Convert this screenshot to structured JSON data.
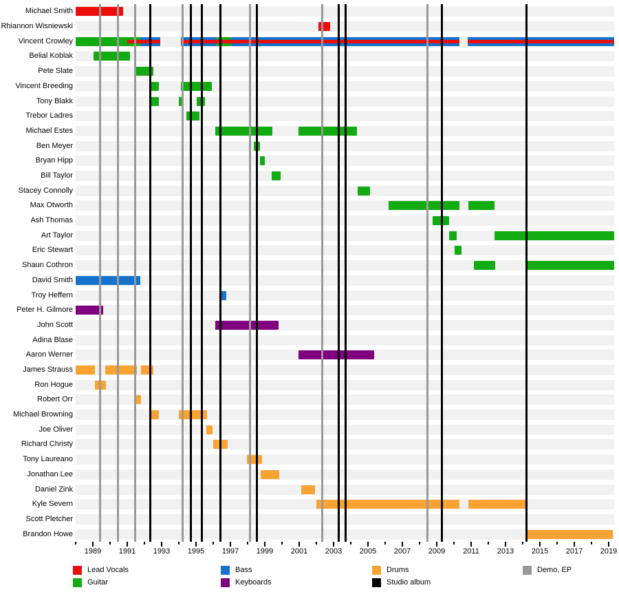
{
  "chart_data": {
    "type": "gantt-timeline",
    "x_axis": {
      "domain_start": 1988.0,
      "domain_end": 2019.32,
      "major_tick_years": [
        1989,
        1991,
        1993,
        1995,
        1997,
        1999,
        2001,
        2003,
        2005,
        2007,
        2009,
        2011,
        2013,
        2015,
        2017,
        2019
      ],
      "major_tick_labels": [
        "1989",
        "1991",
        "1993",
        "1995",
        "1997",
        "1999",
        "2001",
        "2003",
        "2005",
        "2007",
        "2009",
        "2011",
        "2013",
        "2015",
        "2017",
        "2019"
      ],
      "minor_tick_years": [
        1988,
        1990,
        1992,
        1994,
        1996,
        1998,
        2000,
        2002,
        2004,
        2006,
        2008,
        2010,
        2012,
        2014,
        2016,
        2018
      ]
    },
    "role_colors": {
      "lead_vocals": "#ee0d0d",
      "guitar": "#12ab12",
      "bass": "#1572cd",
      "keyboards": "#800080",
      "drums": "#f9a332",
      "studio_album": "#000000",
      "demo_ep": "#999999"
    },
    "rows": [
      {
        "name": "Michael Smith",
        "segments": [
          {
            "role": "lead_vocals",
            "start": 1988.0,
            "end": 1990.75
          }
        ]
      },
      {
        "name": "Rhiannon Wisniewski",
        "segments": [
          {
            "role": "lead_vocals",
            "start": 2002.1,
            "end": 2002.8
          }
        ]
      },
      {
        "name": "Vincent Crowley",
        "segments": [
          {
            "role": "guitar",
            "start": 1988.0,
            "end": 1991.75
          },
          {
            "role": "bass",
            "start": 1991.75,
            "end": 1992.9
          },
          {
            "role": "bass",
            "start": 1994.1,
            "end": 1996.2
          },
          {
            "role": "guitar",
            "start": 1996.2,
            "end": 1997.05
          },
          {
            "role": "bass",
            "start": 1997.05,
            "end": 2010.3
          },
          {
            "role": "bass",
            "start": 2010.8,
            "end": 2019.3
          }
        ],
        "overlays": [
          {
            "role": "lead_vocals",
            "start": 1991.0,
            "end": 1992.9
          },
          {
            "role": "lead_vocals",
            "start": 1994.1,
            "end": 2010.3
          },
          {
            "role": "lead_vocals",
            "start": 2010.8,
            "end": 2019.3
          }
        ]
      },
      {
        "name": "Belial Koblak",
        "segments": [
          {
            "role": "guitar",
            "start": 1989.05,
            "end": 1991.15
          }
        ]
      },
      {
        "name": "Pete Slate",
        "segments": [
          {
            "role": "guitar",
            "start": 1991.5,
            "end": 1992.5
          }
        ]
      },
      {
        "name": "Vincent Breeding",
        "segments": [
          {
            "role": "guitar",
            "start": 1992.35,
            "end": 1992.85
          },
          {
            "role": "guitar",
            "start": 1994.1,
            "end": 1995.9
          }
        ]
      },
      {
        "name": "Tony Blakk",
        "segments": [
          {
            "role": "guitar",
            "start": 1992.35,
            "end": 1992.85
          },
          {
            "role": "guitar",
            "start": 1994.0,
            "end": 1994.25
          },
          {
            "role": "guitar",
            "start": 1995.05,
            "end": 1995.5
          }
        ]
      },
      {
        "name": "Trebor Ladres",
        "segments": [
          {
            "role": "guitar",
            "start": 1994.45,
            "end": 1995.2
          }
        ]
      },
      {
        "name": "Michael Estes",
        "segments": [
          {
            "role": "guitar",
            "start": 1996.1,
            "end": 1999.45
          },
          {
            "role": "guitar",
            "start": 2000.95,
            "end": 2004.35
          }
        ]
      },
      {
        "name": "Ben Meyer",
        "segments": [
          {
            "role": "guitar",
            "start": 1998.35,
            "end": 1998.7
          }
        ]
      },
      {
        "name": "Bryan Hipp",
        "segments": [
          {
            "role": "guitar",
            "start": 1998.7,
            "end": 1999.0
          }
        ]
      },
      {
        "name": "Bill Taylor",
        "segments": [
          {
            "role": "guitar",
            "start": 1999.4,
            "end": 1999.9
          }
        ]
      },
      {
        "name": "Stacey Connolly",
        "segments": [
          {
            "role": "guitar",
            "start": 2004.4,
            "end": 2005.1
          }
        ]
      },
      {
        "name": "Max Otworth",
        "segments": [
          {
            "role": "guitar",
            "start": 2006.2,
            "end": 2010.3
          },
          {
            "role": "guitar",
            "start": 2010.85,
            "end": 2012.35
          }
        ]
      },
      {
        "name": "Ash Thomas",
        "segments": [
          {
            "role": "guitar",
            "start": 2008.75,
            "end": 2009.7
          }
        ]
      },
      {
        "name": "Art Taylor",
        "segments": [
          {
            "role": "guitar",
            "start": 2009.7,
            "end": 2010.15
          },
          {
            "role": "guitar",
            "start": 2012.35,
            "end": 2019.3
          }
        ]
      },
      {
        "name": "Eric Stewart",
        "segments": [
          {
            "role": "guitar",
            "start": 2010.05,
            "end": 2010.45
          }
        ]
      },
      {
        "name": "Shaun Cothron",
        "segments": [
          {
            "role": "guitar",
            "start": 2011.15,
            "end": 2012.4
          },
          {
            "role": "guitar",
            "start": 2014.2,
            "end": 2019.3
          }
        ]
      },
      {
        "name": "David Smith",
        "segments": [
          {
            "role": "bass",
            "start": 1988.0,
            "end": 1991.75
          }
        ]
      },
      {
        "name": "Troy Heffern",
        "segments": [
          {
            "role": "bass",
            "start": 1996.35,
            "end": 1996.75
          }
        ]
      },
      {
        "name": "Peter H. Gilmore",
        "segments": [
          {
            "role": "keyboards",
            "start": 1988.0,
            "end": 1989.6
          }
        ]
      },
      {
        "name": "John Scott",
        "segments": [
          {
            "role": "keyboards",
            "start": 1996.1,
            "end": 1999.8
          }
        ]
      },
      {
        "name": "Adina Blase",
        "segments": []
      },
      {
        "name": "Aaron Werner",
        "segments": [
          {
            "role": "keyboards",
            "start": 2000.95,
            "end": 2005.35
          }
        ]
      },
      {
        "name": "James Strauss",
        "segments": [
          {
            "role": "drums",
            "start": 1988.0,
            "end": 1989.1
          },
          {
            "role": "drums",
            "start": 1989.7,
            "end": 1991.55
          },
          {
            "role": "drums",
            "start": 1991.8,
            "end": 1992.5
          }
        ]
      },
      {
        "name": "Ron Hogue",
        "segments": [
          {
            "role": "drums",
            "start": 1989.1,
            "end": 1989.75
          }
        ]
      },
      {
        "name": "Robert Orr",
        "segments": [
          {
            "role": "drums",
            "start": 1991.5,
            "end": 1991.8
          }
        ]
      },
      {
        "name": "Michael Browning",
        "segments": [
          {
            "role": "drums",
            "start": 1992.35,
            "end": 1992.85
          },
          {
            "role": "drums",
            "start": 1994.0,
            "end": 1995.65
          }
        ]
      },
      {
        "name": "Joe Oliver",
        "segments": [
          {
            "role": "drums",
            "start": 1995.6,
            "end": 1995.95
          }
        ]
      },
      {
        "name": "Richard Christy",
        "segments": [
          {
            "role": "drums",
            "start": 1996.0,
            "end": 1996.85
          }
        ]
      },
      {
        "name": "Tony Laureano",
        "segments": [
          {
            "role": "drums",
            "start": 1997.95,
            "end": 1998.85
          }
        ]
      },
      {
        "name": "Jonathan Lee",
        "segments": [
          {
            "role": "drums",
            "start": 1998.75,
            "end": 1999.85
          }
        ]
      },
      {
        "name": "Daniel Zink",
        "segments": [
          {
            "role": "drums",
            "start": 2001.1,
            "end": 2001.9
          }
        ]
      },
      {
        "name": "Kyle Severn",
        "segments": [
          {
            "role": "drums",
            "start": 2002.0,
            "end": 2010.3
          },
          {
            "role": "drums",
            "start": 2010.85,
            "end": 2014.2
          }
        ]
      },
      {
        "name": "Scott Pletcher",
        "segments": []
      },
      {
        "name": "Brandon Howe",
        "segments": [
          {
            "role": "drums",
            "start": 2014.25,
            "end": 2019.25
          }
        ]
      }
    ],
    "releases": [
      {
        "kind": "demo_ep",
        "year": 1989.4
      },
      {
        "kind": "demo_ep",
        "year": 1990.45
      },
      {
        "kind": "demo_ep",
        "year": 1991.45
      },
      {
        "kind": "studio_album",
        "year": 1992.35
      },
      {
        "kind": "demo_ep",
        "year": 1994.2
      },
      {
        "kind": "studio_album",
        "year": 1994.7
      },
      {
        "kind": "studio_album",
        "year": 1995.35
      },
      {
        "kind": "studio_album",
        "year": 1996.4
      },
      {
        "kind": "demo_ep",
        "year": 1998.15
      },
      {
        "kind": "studio_album",
        "year": 1998.55
      },
      {
        "kind": "demo_ep",
        "year": 2002.35
      },
      {
        "kind": "studio_album",
        "year": 2003.3
      },
      {
        "kind": "studio_album",
        "year": 2003.7
      },
      {
        "kind": "demo_ep",
        "year": 2008.45
      },
      {
        "kind": "studio_album",
        "year": 2009.3
      },
      {
        "kind": "studio_album",
        "year": 2014.2
      }
    ],
    "legend": {
      "columns": [
        [
          {
            "label": "Lead Vocals",
            "role": "lead_vocals"
          },
          {
            "label": "Guitar",
            "role": "guitar"
          }
        ],
        [
          {
            "label": "Bass",
            "role": "bass"
          },
          {
            "label": "Keyboards",
            "role": "keyboards"
          }
        ],
        [
          {
            "label": "Drums",
            "role": "drums"
          },
          {
            "label": "Studio album",
            "role": "studio_album"
          }
        ],
        [
          {
            "label": "Demo, EP",
            "role": "demo_ep"
          }
        ]
      ]
    }
  }
}
